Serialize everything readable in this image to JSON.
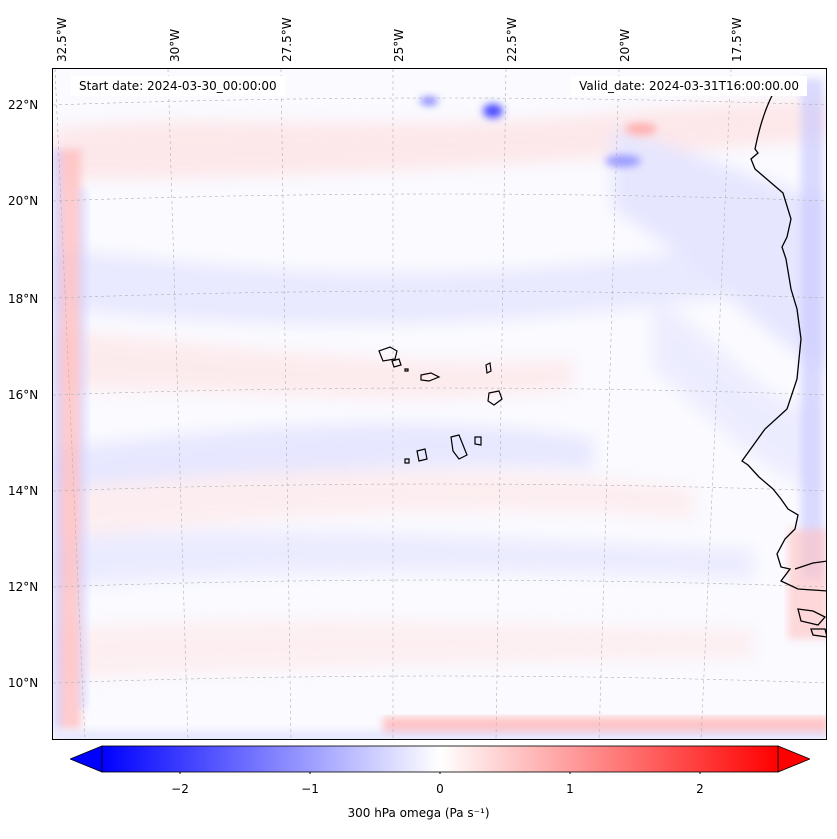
{
  "header": {
    "start_date": "Start date: 2024-03-30_00:00:00",
    "valid_date": "Valid_date: 2024-03-31T16:00:00.00"
  },
  "map": {
    "lon_labels": [
      "32.5°W",
      "30°W",
      "27.5°W",
      "25°W",
      "22.5°W",
      "20°W",
      "17.5°W"
    ],
    "lat_labels": [
      "22°N",
      "20°N",
      "18°N",
      "16°N",
      "14°N",
      "12°N",
      "10°N"
    ],
    "gridlines": true
  },
  "colorbar": {
    "min": -2.6,
    "max": 2.6,
    "ticks": [
      "−2",
      "−1",
      "0",
      "1",
      "2"
    ],
    "tick_values": [
      -2,
      -1,
      0,
      1,
      2
    ],
    "label": "300 hPa omega (Pa s⁻¹)",
    "color_negative": "#0000ff",
    "color_zero": "#ffffff",
    "color_positive": "#ff0000",
    "extend": "both"
  },
  "colors": {
    "coastline": "#000000",
    "gridline": "#b0b0b0"
  }
}
